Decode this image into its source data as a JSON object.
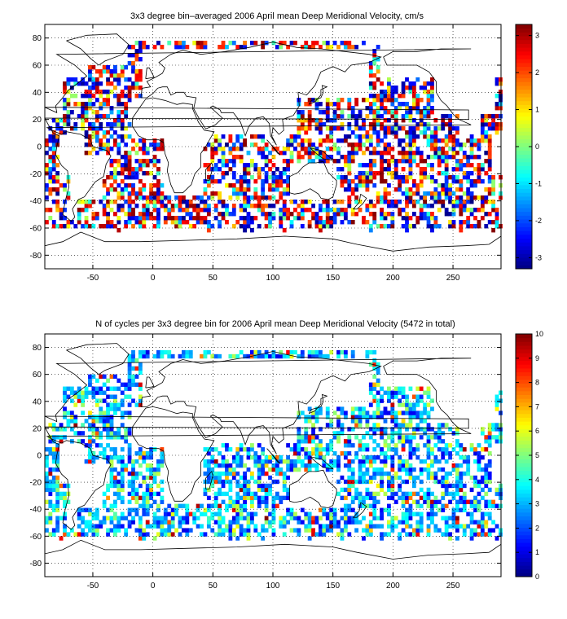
{
  "chart_data": [
    {
      "type": "heatmap",
      "title": "3x3 degree bin–averaged 2006 April mean Deep Meridional Velocity, cm/s",
      "x_ticks": [
        -50,
        0,
        50,
        100,
        150,
        200,
        250
      ],
      "y_ticks": [
        -80,
        -60,
        -40,
        -20,
        0,
        20,
        40,
        60,
        80
      ],
      "xlim": [
        -90,
        290
      ],
      "ylim": [
        -90,
        90
      ],
      "grid": true,
      "bin_size_deg": 3,
      "colorbar": {
        "min": -3.3,
        "max": 3.3,
        "ticks": [
          -3,
          -2,
          -1,
          0,
          1,
          2,
          3
        ],
        "colormap": "jet"
      }
    },
    {
      "type": "heatmap",
      "title": "N of cycles per 3x3 degree bin for 2006 April mean Deep Meridional Velocity (5472 in total)",
      "x_ticks": [
        -50,
        0,
        50,
        100,
        150,
        200,
        250
      ],
      "y_ticks": [
        -80,
        -60,
        -40,
        -20,
        0,
        20,
        40,
        60,
        80
      ],
      "xlim": [
        -90,
        290
      ],
      "ylim": [
        -90,
        90
      ],
      "grid": true,
      "bin_size_deg": 3,
      "colorbar": {
        "min": 0,
        "max": 10,
        "ticks": [
          0,
          1,
          2,
          3,
          4,
          5,
          6,
          7,
          8,
          9,
          10
        ],
        "colormap": "jet"
      }
    }
  ]
}
